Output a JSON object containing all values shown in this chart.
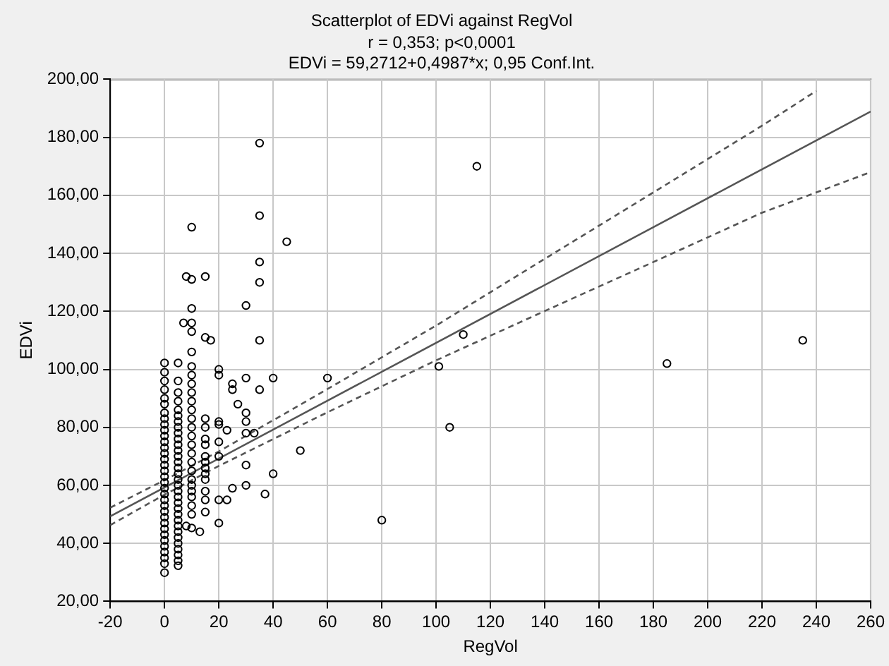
{
  "chart_data": {
    "type": "scatter",
    "title": "Scatterplot of EDVi against RegVol",
    "subtitle": "r = 0,353; p<0,0001\nEDVi = 59,2712+0,4987*x; 0,95 Conf.Int.",
    "xlabel": "RegVol",
    "ylabel": "EDVi",
    "xlim": [
      -20,
      260
    ],
    "xticks": [
      -20,
      0,
      20,
      40,
      60,
      80,
      100,
      120,
      140,
      160,
      180,
      200,
      220,
      240,
      260
    ],
    "ylim": [
      20,
      200
    ],
    "yticks": [
      {
        "value": 20,
        "label": "20,00"
      },
      {
        "value": 40,
        "label": "40,00"
      },
      {
        "value": 60,
        "label": "60,00"
      },
      {
        "value": 80,
        "label": "80,00"
      },
      {
        "value": 100,
        "label": "100,00"
      },
      {
        "value": 120,
        "label": "120,00"
      },
      {
        "value": 140,
        "label": "140,00"
      },
      {
        "value": 160,
        "label": "160,00"
      },
      {
        "value": 180,
        "label": "180,00"
      },
      {
        "value": 200,
        "label": "200,00"
      }
    ],
    "grid": true,
    "legend": false,
    "marker": "circle",
    "series": [
      {
        "color": "#000000",
        "x": [
          0,
          0,
          0,
          0,
          0,
          0,
          0,
          0,
          0,
          0,
          0,
          0,
          0,
          0,
          0,
          0,
          0,
          0,
          0,
          0,
          0,
          0,
          0,
          0,
          0,
          0,
          0,
          0,
          0,
          0,
          0,
          0,
          0,
          0,
          5,
          5,
          5,
          5,
          5,
          5,
          5,
          5,
          5,
          5,
          5,
          5,
          5,
          5,
          5,
          5,
          5,
          5,
          5,
          5,
          5,
          5,
          5,
          5,
          5,
          5,
          5,
          5,
          10,
          10,
          10,
          10,
          10,
          10,
          10,
          10,
          10,
          10,
          10,
          10,
          10,
          10,
          10,
          10,
          10,
          10,
          10,
          10,
          10,
          10,
          10,
          10,
          10,
          10,
          15,
          15,
          15,
          15,
          15,
          15,
          15,
          15,
          15,
          15,
          15,
          15,
          8,
          8,
          7,
          15,
          13,
          15,
          17,
          20,
          20,
          20,
          20,
          20,
          20,
          20,
          20,
          23,
          23,
          25,
          25,
          25,
          27,
          30,
          30,
          30,
          30,
          30,
          30,
          30,
          33,
          35,
          35,
          35,
          35,
          35,
          35,
          37,
          40,
          40,
          45,
          50,
          60,
          80,
          101,
          105,
          110,
          115,
          185,
          235,
          5,
          5,
          5,
          5
        ],
        "values": [
          29.9,
          33,
          35,
          37,
          39,
          41,
          43,
          45,
          47,
          49,
          51,
          53,
          55,
          57,
          59,
          61,
          63,
          65,
          67,
          69,
          71,
          73,
          75,
          77,
          79,
          81,
          83,
          85,
          88,
          90,
          93,
          96,
          99,
          102.2,
          32.3,
          34,
          36,
          38,
          40,
          42,
          44,
          46,
          48,
          50,
          52,
          54,
          56,
          58,
          60,
          62,
          64,
          66,
          68,
          70,
          72,
          74,
          76,
          78,
          80,
          82,
          84,
          86,
          45.3,
          50,
          53,
          56,
          58,
          60,
          62,
          65,
          68,
          71,
          74,
          77,
          80,
          83,
          86,
          89,
          92,
          95,
          98,
          101,
          106,
          113,
          116,
          121,
          131,
          149,
          50.8,
          55,
          58,
          62,
          64,
          66,
          68,
          70,
          74,
          76,
          80,
          83,
          132,
          46,
          116,
          132,
          44,
          111,
          110,
          47,
          55,
          70,
          75,
          81,
          82,
          98,
          100,
          55,
          79,
          59,
          93,
          95,
          88,
          60,
          67,
          78,
          82,
          85,
          97,
          122,
          78,
          93,
          110,
          130,
          137,
          153,
          178,
          57,
          64,
          97,
          144,
          72,
          97,
          48,
          101,
          80,
          112,
          170,
          102,
          110,
          89,
          92,
          96,
          102.2
        ]
      },
      {
        "type": "line",
        "color": "#555555",
        "line_style": "solid",
        "marker": "none",
        "x": [
          -20,
          260
        ],
        "values": [
          49.3,
          188.9
        ]
      },
      {
        "type": "line",
        "color": "#555555",
        "line_style": "dashed",
        "marker": "none",
        "x": [
          -20,
          0,
          20,
          60,
          100,
          140,
          180,
          220,
          240
        ],
        "values": [
          52.3,
          61.8,
          71.7,
          93.2,
          115.1,
          138.1,
          161,
          184,
          196
        ]
      },
      {
        "type": "line",
        "color": "#555555",
        "line_style": "dashed",
        "marker": "none",
        "x": [
          -20,
          0,
          20,
          60,
          100,
          140,
          180,
          220,
          260
        ],
        "values": [
          46.3,
          56.8,
          66.7,
          85.2,
          103.1,
          120.1,
          137,
          154,
          168
        ]
      }
    ]
  }
}
